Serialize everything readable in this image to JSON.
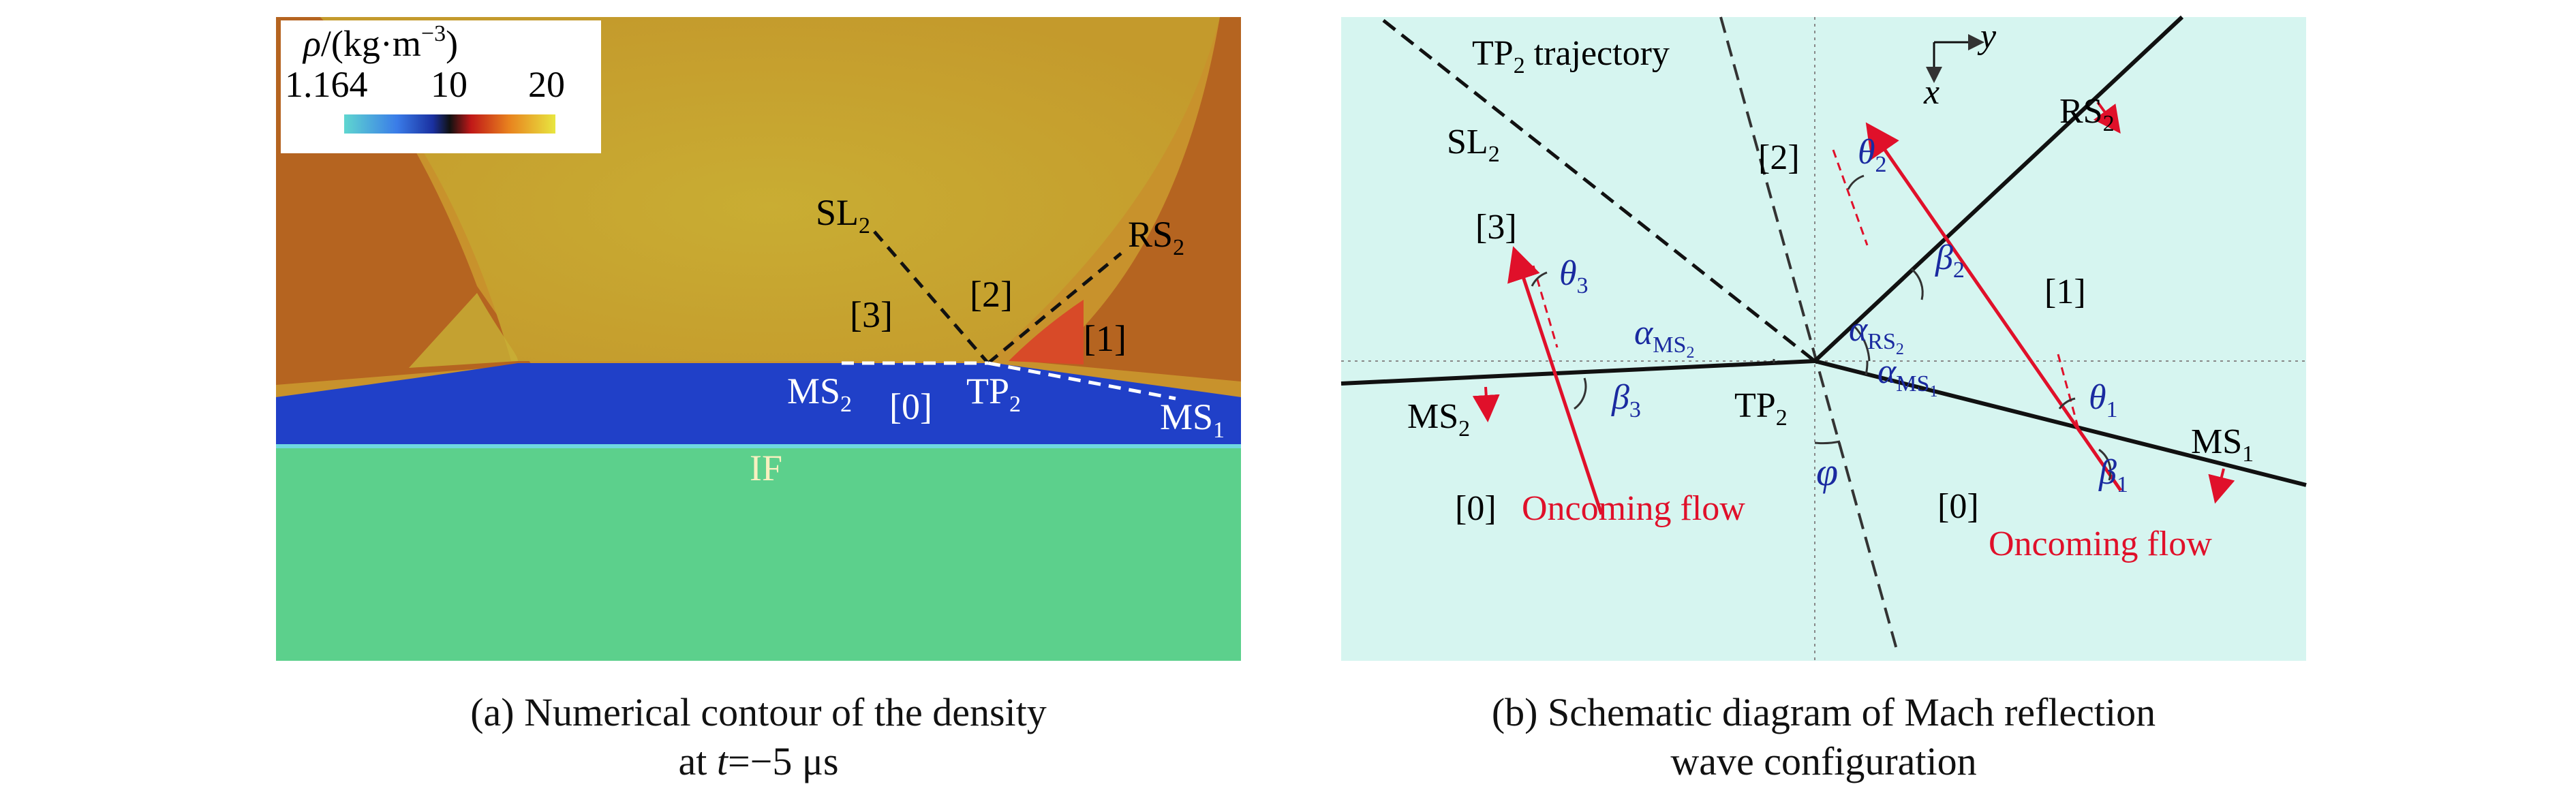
{
  "panel_a": {
    "legend": {
      "title_symbol": "ρ",
      "title_unit_pre": "/(kg·m",
      "title_unit_exp": "−3",
      "title_unit_post": ")",
      "tick_min": "1.164",
      "tick_mid": "10",
      "tick_max": "20"
    },
    "labels": {
      "sl": "SL",
      "sl_sub": "2",
      "rs": "RS",
      "rs_sub": "2",
      "region3": "[3]",
      "region2": "[2]",
      "region1": "[1]",
      "region0": "[0]",
      "ms2": "MS",
      "ms2_sub": "2",
      "tp": "TP",
      "tp_sub": "2",
      "ms1": "MS",
      "ms1_sub": "1",
      "if": "IF"
    },
    "colors": {
      "region_gas": "#c8922c",
      "region_shocked": "#c07020",
      "region_bright": "#c8ac30",
      "mach_stem": "#2040c8",
      "inert": "#5cd08c"
    }
  },
  "panel_b": {
    "labels": {
      "tp_traj": "TP",
      "tp_traj_sub": "2",
      "tp_traj_suffix": " trajectory",
      "axis_y": "y",
      "axis_x": "x",
      "rs": "RS",
      "rs_sub": "2",
      "sl": "SL",
      "sl_sub": "2",
      "region2": "[2]",
      "region3": "[3]",
      "region1": "[1]",
      "region0_left": "[0]",
      "region0_right": "[0]",
      "theta2": "θ",
      "theta2_sub": "2",
      "beta2": "β",
      "beta2_sub": "2",
      "theta3": "θ",
      "theta3_sub": "3",
      "beta3": "β",
      "beta3_sub": "3",
      "theta1": "θ",
      "theta1_sub": "1",
      "beta1": "β",
      "beta1_sub": "1",
      "alpha_ms2": "α",
      "alpha_ms2_sub": "MS",
      "alpha_ms2_subsub": "2",
      "alpha_rs2": "α",
      "alpha_rs2_sub": "RS",
      "alpha_rs2_subsub": "2",
      "alpha_ms1": "α",
      "alpha_ms1_sub": "MS",
      "alpha_ms1_subsub": "1",
      "ms2": "MS",
      "ms2_sub": "2",
      "tp": "TP",
      "tp_sub": "2",
      "ms1": "MS",
      "ms1_sub": "1",
      "phi": "φ",
      "oncoming_left": "Oncoming flow",
      "oncoming_right": "Oncoming flow"
    },
    "colors": {
      "background": "#d6f5f0",
      "flow": "#e0102a",
      "angle": "#1a2aa0"
    }
  },
  "captions": {
    "a_line1": "(a) Numerical contour of the density",
    "a_line2_pre": "at ",
    "a_line2_var": "t",
    "a_line2_post": "=−5 μs",
    "b_line1": "(b) Schematic diagram of Mach reflection",
    "b_line2": "wave configuration"
  }
}
